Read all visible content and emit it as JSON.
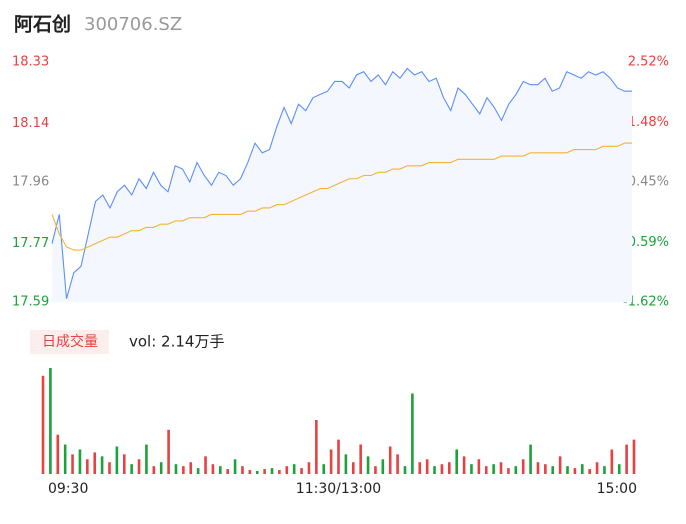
{
  "header": {
    "title": "阿石创",
    "subtitle": "300706.SZ"
  },
  "chart_data": [
    {
      "type": "line",
      "ylim": [
        17.59,
        18.33
      ],
      "yticks": [
        17.59,
        17.77,
        17.96,
        18.14,
        18.33
      ],
      "y2lim": [
        -1.62,
        2.52
      ],
      "y2ticks": [
        {
          "value": -1.62,
          "label": "-1.62%"
        },
        {
          "value": -0.59,
          "label": "-0.59%"
        },
        {
          "value": 0.45,
          "label": "0.45%"
        },
        {
          "value": 1.48,
          "label": "1.48%"
        },
        {
          "value": 2.52,
          "label": "2.52%"
        }
      ],
      "area_color": "#f4f7fd",
      "series": [
        {
          "color": "#5b8ff9",
          "values": [
            17.77,
            17.86,
            17.6,
            17.68,
            17.7,
            17.8,
            17.9,
            17.92,
            17.88,
            17.93,
            17.95,
            17.92,
            17.97,
            17.94,
            17.99,
            17.95,
            17.93,
            18.01,
            18.0,
            17.96,
            18.02,
            17.98,
            17.95,
            17.99,
            17.98,
            17.95,
            17.97,
            18.02,
            18.08,
            18.05,
            18.06,
            18.13,
            18.19,
            18.14,
            18.2,
            18.18,
            18.22,
            18.23,
            18.24,
            18.27,
            18.27,
            18.25,
            18.29,
            18.3,
            18.27,
            18.29,
            18.26,
            18.3,
            18.28,
            18.31,
            18.29,
            18.3,
            18.27,
            18.28,
            18.22,
            18.18,
            18.25,
            18.23,
            18.2,
            18.17,
            18.22,
            18.19,
            18.15,
            18.2,
            18.23,
            18.27,
            18.26,
            18.26,
            18.28,
            18.24,
            18.25,
            18.3,
            18.29,
            18.28,
            18.3,
            18.29,
            18.3,
            18.28,
            18.25,
            18.24,
            18.24
          ]
        },
        {
          "color": "#f5b335",
          "values": [
            17.86,
            17.8,
            17.76,
            17.75,
            17.75,
            17.76,
            17.77,
            17.78,
            17.79,
            17.79,
            17.8,
            17.81,
            17.81,
            17.82,
            17.82,
            17.83,
            17.83,
            17.84,
            17.84,
            17.85,
            17.85,
            17.85,
            17.86,
            17.86,
            17.86,
            17.86,
            17.86,
            17.87,
            17.87,
            17.88,
            17.88,
            17.89,
            17.89,
            17.9,
            17.91,
            17.92,
            17.93,
            17.94,
            17.94,
            17.95,
            17.96,
            17.97,
            17.97,
            17.98,
            17.98,
            17.99,
            17.99,
            18.0,
            18.0,
            18.01,
            18.01,
            18.01,
            18.02,
            18.02,
            18.02,
            18.02,
            18.03,
            18.03,
            18.03,
            18.03,
            18.03,
            18.03,
            18.04,
            18.04,
            18.04,
            18.04,
            18.05,
            18.05,
            18.05,
            18.05,
            18.05,
            18.05,
            18.06,
            18.06,
            18.06,
            18.06,
            18.07,
            18.07,
            18.07,
            18.08,
            18.08
          ]
        }
      ]
    },
    {
      "type": "bar",
      "legend": "日成交量",
      "summary": "vol: 2.14万手",
      "ylim": [
        0,
        110
      ],
      "categories": [
        "09:30",
        null,
        null,
        null,
        null,
        null,
        null,
        null,
        null,
        null,
        null,
        null,
        null,
        null,
        null,
        null,
        null,
        null,
        null,
        null,
        null,
        null,
        null,
        null,
        null,
        null,
        null,
        null,
        null,
        null,
        null,
        null,
        null,
        null,
        null,
        null,
        null,
        null,
        null,
        null,
        "11:30/13:00",
        null,
        null,
        null,
        null,
        null,
        null,
        null,
        null,
        null,
        null,
        null,
        null,
        null,
        null,
        null,
        null,
        null,
        null,
        null,
        null,
        null,
        null,
        null,
        null,
        null,
        null,
        null,
        null,
        null,
        null,
        null,
        null,
        null,
        null,
        null,
        null,
        null,
        null,
        null,
        "15:00"
      ],
      "values": [
        100,
        108,
        40,
        30,
        20,
        25,
        15,
        22,
        18,
        12,
        28,
        20,
        10,
        15,
        30,
        8,
        12,
        45,
        10,
        8,
        12,
        6,
        18,
        10,
        8,
        5,
        15,
        8,
        4,
        3,
        5,
        6,
        4,
        8,
        10,
        6,
        12,
        55,
        10,
        25,
        35,
        20,
        12,
        30,
        18,
        8,
        15,
        28,
        20,
        8,
        82,
        12,
        15,
        8,
        10,
        12,
        25,
        18,
        10,
        15,
        8,
        10,
        12,
        6,
        8,
        15,
        30,
        12,
        10,
        8,
        18,
        8,
        6,
        10,
        5,
        12,
        8,
        25,
        10,
        30,
        35
      ],
      "colors": [
        "#e84141",
        "#1aa33c",
        "#e84141",
        "#1aa33c",
        "#e84141",
        "#1aa33c",
        "#e84141",
        "#e84141",
        "#1aa33c",
        "#e84141",
        "#1aa33c",
        "#e84141",
        "#1aa33c",
        "#e84141",
        "#1aa33c",
        "#e84141",
        "#1aa33c",
        "#e84141",
        "#1aa33c",
        "#e84141",
        "#e84141",
        "#1aa33c",
        "#e84141",
        "#e84141",
        "#1aa33c",
        "#e84141",
        "#1aa33c",
        "#e84141",
        "#e84141",
        "#1aa33c",
        "#e84141",
        "#1aa33c",
        "#e84141",
        "#e84141",
        "#1aa33c",
        "#e84141",
        "#e84141",
        "#e84141",
        "#1aa33c",
        "#e84141",
        "#e84141",
        "#1aa33c",
        "#e84141",
        "#e84141",
        "#1aa33c",
        "#e84141",
        "#1aa33c",
        "#e84141",
        "#e84141",
        "#1aa33c",
        "#1aa33c",
        "#e84141",
        "#e84141",
        "#1aa33c",
        "#e84141",
        "#e84141",
        "#1aa33c",
        "#e84141",
        "#1aa33c",
        "#e84141",
        "#e84141",
        "#1aa33c",
        "#e84141",
        "#e84141",
        "#1aa33c",
        "#e84141",
        "#1aa33c",
        "#e84141",
        "#e84141",
        "#1aa33c",
        "#e84141",
        "#1aa33c",
        "#e84141",
        "#1aa33c",
        "#e84141",
        "#e84141",
        "#1aa33c",
        "#e84141",
        "#1aa33c",
        "#e84141",
        "#e84141"
      ]
    }
  ]
}
